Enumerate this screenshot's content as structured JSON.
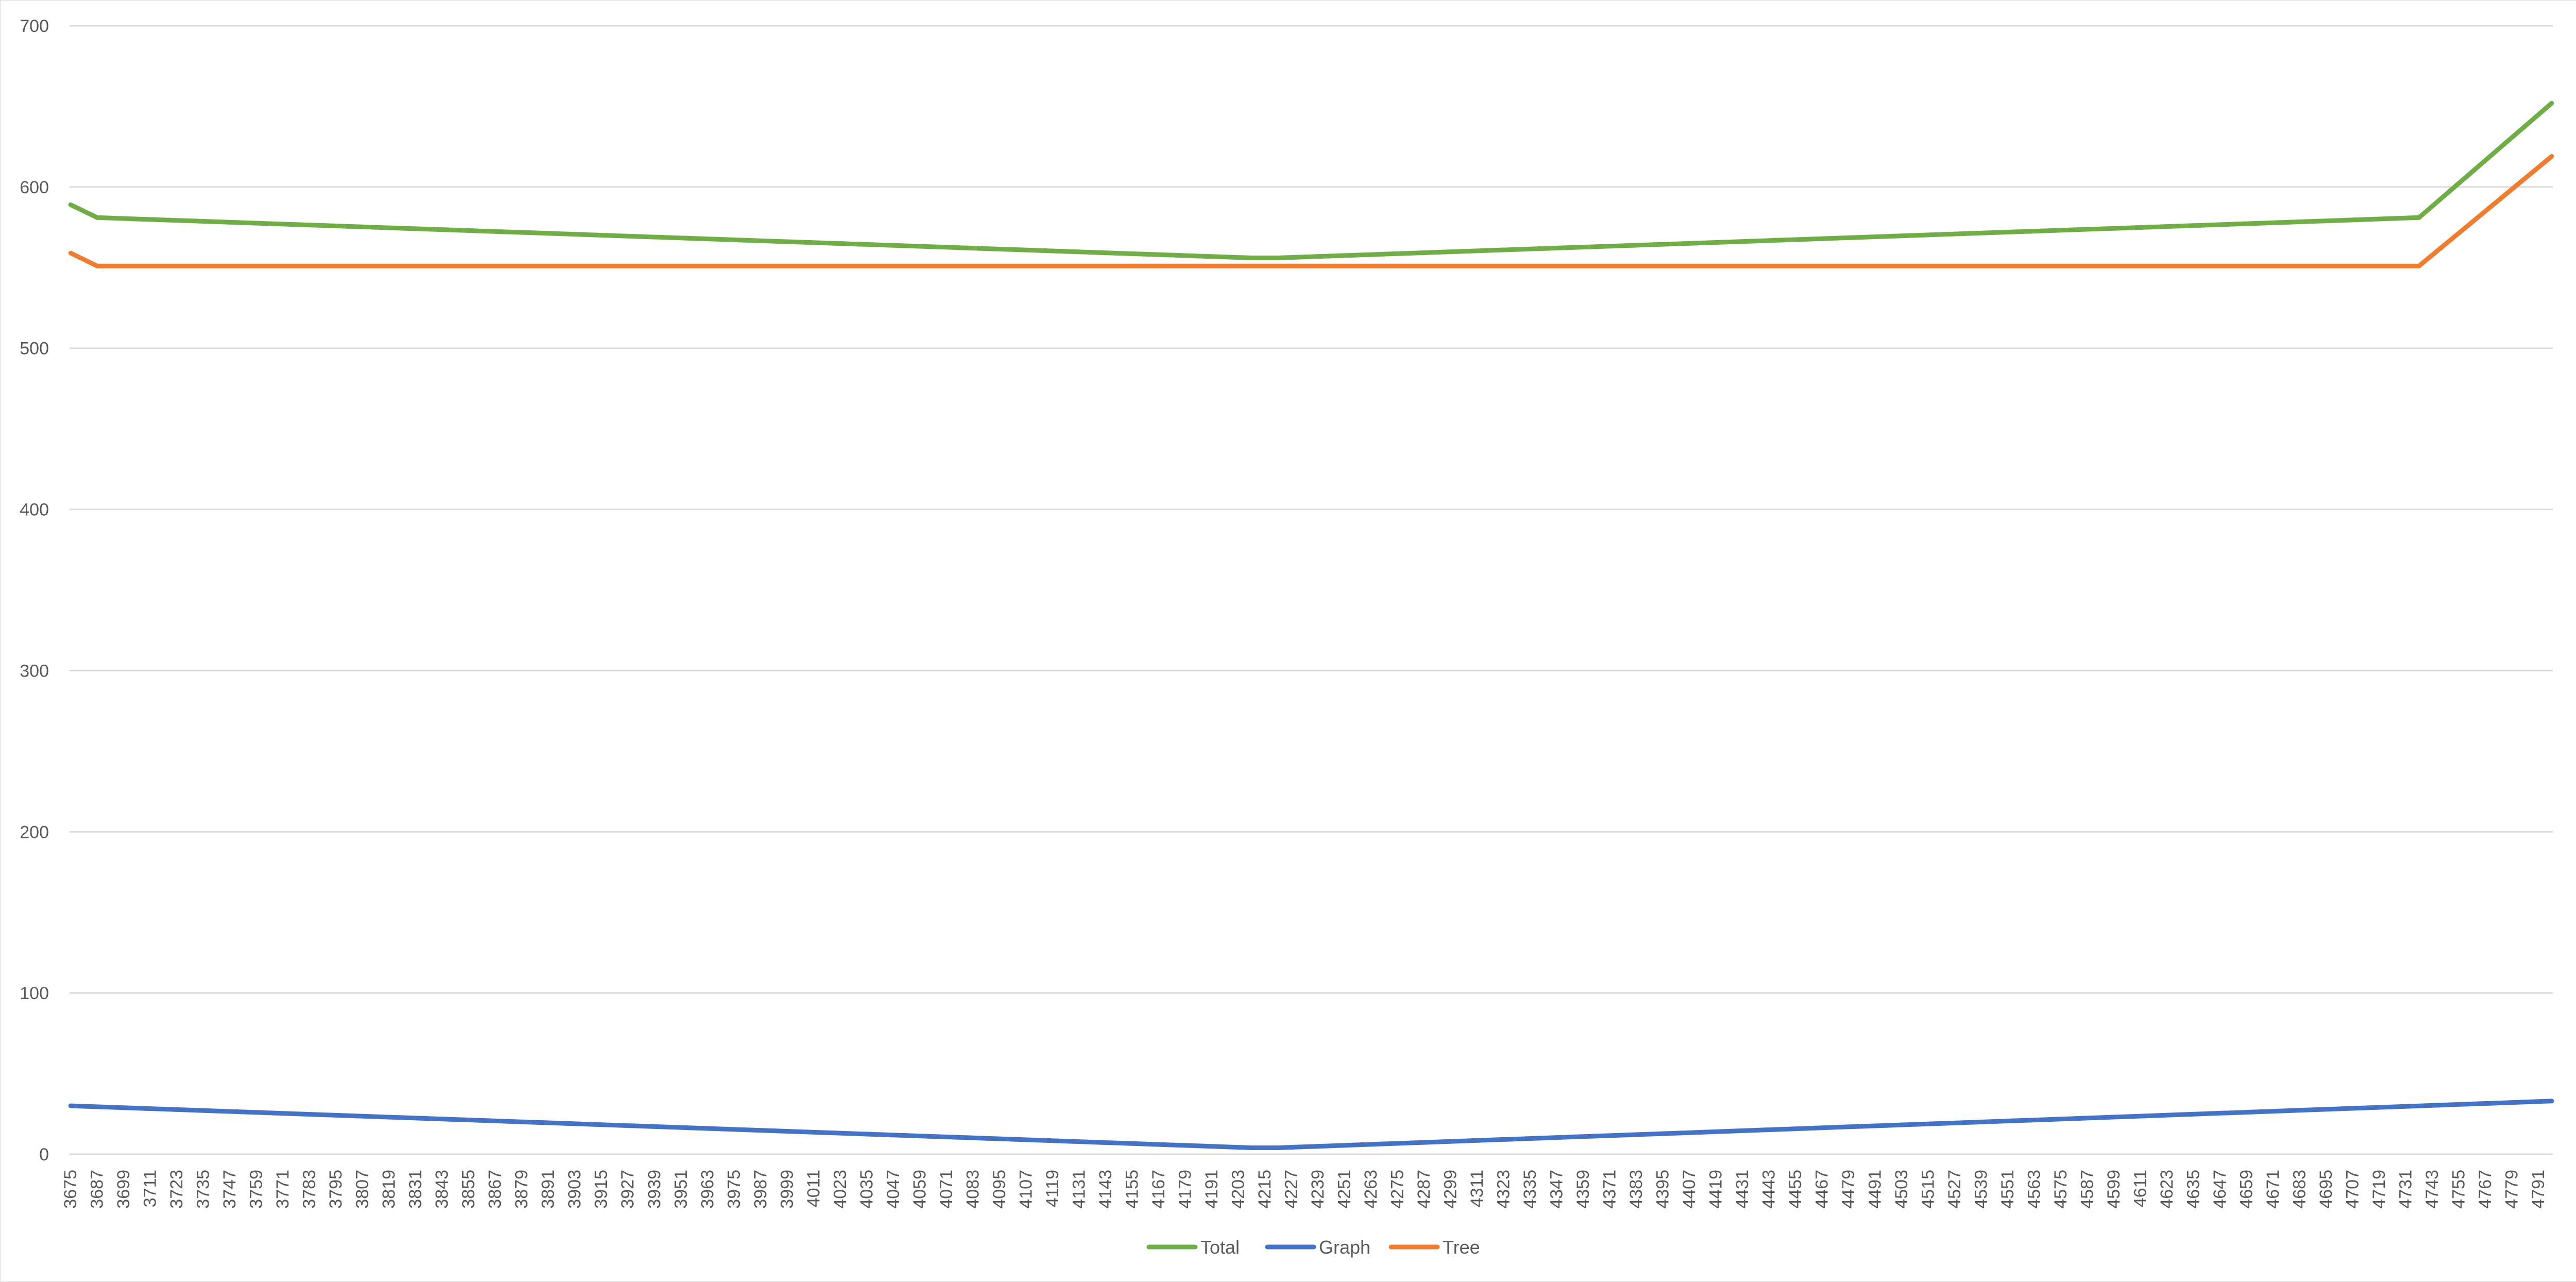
{
  "chart_data": {
    "type": "line",
    "title": "",
    "xlabel": "",
    "ylabel": "",
    "x_start": 3675,
    "x_end": 4797,
    "x_step": 1,
    "x_label_step": 12,
    "ylim": [
      0,
      700
    ],
    "y_ticks": [
      0,
      100,
      200,
      300,
      400,
      500,
      600,
      700
    ],
    "grid": true,
    "legend_position": "bottom",
    "series": [
      {
        "name": "Total",
        "color": "#70ad47",
        "points": [
          [
            3675,
            589
          ],
          [
            3687,
            581
          ],
          [
            4209,
            556
          ],
          [
            4221,
            556
          ],
          [
            4737,
            581
          ],
          [
            4797,
            652
          ]
        ]
      },
      {
        "name": "Graph",
        "color": "#4472c4",
        "points": [
          [
            3675,
            30
          ],
          [
            4209,
            4
          ],
          [
            4221,
            4
          ],
          [
            4797,
            33
          ]
        ]
      },
      {
        "name": "Tree",
        "color": "#ed7d31",
        "points": [
          [
            3675,
            559
          ],
          [
            3687,
            551
          ],
          [
            4737,
            551
          ],
          [
            4797,
            619
          ]
        ]
      }
    ]
  }
}
